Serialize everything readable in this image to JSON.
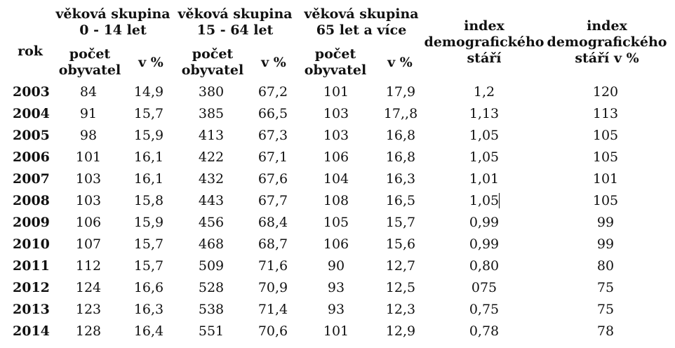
{
  "headers": {
    "group1": "věková skupina\n0 - 14 let",
    "group2": "věková skupina\n15 - 64 let",
    "group3": "věková skupina\n65 let a více",
    "index": "index\ndemografického\nstáří",
    "index_pct": "index\ndemografického\nstáří v %",
    "rok": "rok",
    "count1": "počet\nobyvatel",
    "pct1": "v %",
    "count2": "počet\nobyvatel",
    "pct2": "v %",
    "count3": "počet\nobyvatel",
    "pct3": "v %"
  },
  "rows": [
    [
      "2003",
      "84",
      "14,9",
      "380",
      "67,2",
      "101",
      "17,9",
      "1,2",
      "120"
    ],
    [
      "2004",
      "91",
      "15,7",
      "385",
      "66,5",
      "103",
      "17,,8",
      "1,13",
      "113"
    ],
    [
      "2005",
      "98",
      "15,9",
      "413",
      "67,3",
      "103",
      "16,8",
      "1,05",
      "105"
    ],
    [
      "2006",
      "101",
      "16,1",
      "422",
      "67,1",
      "106",
      "16,8",
      "1,05",
      "105"
    ],
    [
      "2007",
      "103",
      "16,1",
      "432",
      "67,6",
      "104",
      "16,3",
      "1,01",
      "101"
    ],
    [
      "2008",
      "103",
      "15,8",
      "443",
      "67,7",
      "108",
      "16,5",
      "1,05",
      "105"
    ],
    [
      "2009",
      "106",
      "15,9",
      "456",
      "68,4",
      "105",
      "15,7",
      "0,99",
      "99"
    ],
    [
      "2010",
      "107",
      "15,7",
      "468",
      "68,7",
      "106",
      "15,6",
      "0,99",
      "99"
    ],
    [
      "2011",
      "112",
      "15,7",
      "509",
      "71,6",
      "90",
      "12,7",
      "0,80",
      "80"
    ],
    [
      "2012",
      "124",
      "16,6",
      "528",
      "70,9",
      "93",
      "12,5",
      "075",
      "75"
    ],
    [
      "2013",
      "123",
      "16,3",
      "538",
      "71,4",
      "93",
      "12,3",
      "0,75",
      "75"
    ],
    [
      "2014",
      "128",
      "16,4",
      "551",
      "70,6",
      "101",
      "12,9",
      "0,78",
      "78"
    ]
  ]
}
